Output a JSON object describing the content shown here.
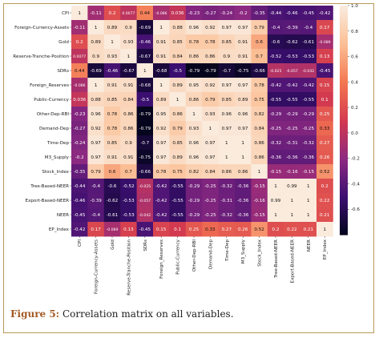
{
  "figure": {
    "label": "Figure 5:",
    "caption": "Correlation matrix on all variables."
  },
  "chart_data": {
    "type": "heatmap",
    "title": "",
    "xlabel": "",
    "ylabel": "",
    "labels": [
      "CPI",
      "Foreign-Currency-Assets",
      "Gold",
      "Reserve-Tranche-Position",
      "SDRs",
      "Foreign_Reserves",
      "Public-Currency",
      "Other-Dep-RBI",
      "Demand-Dep",
      "Time-Dep",
      "M3_Supply",
      "Stock_Index",
      "Tree-Based-NEER",
      "Export-Based-NEER",
      "NEER",
      "EP_Index"
    ],
    "values": [
      [
        "1",
        "-0.11",
        "0.2",
        "0.0077",
        "0.44",
        "-0.086",
        "0.036",
        "-0.23",
        "-0.27",
        "-0.24",
        "-0.2",
        "-0.35",
        "-0.44",
        "-0.46",
        "-0.45",
        "-0.42"
      ],
      [
        "-0.11",
        "1",
        "0.89",
        "0.9",
        "-0.69",
        "1",
        "0.88",
        "0.96",
        "0.92",
        "0.97",
        "0.97",
        "0.79",
        "-0.4",
        "-0.39",
        "-0.4",
        "0.17"
      ],
      [
        "0.2",
        "0.89",
        "1",
        "0.93",
        "-0.46",
        "0.91",
        "0.85",
        "0.78",
        "0.78",
        "0.85",
        "0.91",
        "0.6",
        "-0.6",
        "-0.62",
        "-0.61",
        "-0.089"
      ],
      [
        "0.0077",
        "0.9",
        "0.93",
        "1",
        "-0.67",
        "0.91",
        "0.84",
        "0.86",
        "0.86",
        "0.9",
        "0.91",
        "0.7",
        "-0.52",
        "-0.53",
        "-0.53",
        "0.13"
      ],
      [
        "0.44",
        "-0.69",
        "-0.46",
        "-0.67",
        "1",
        "-0.68",
        "-0.5",
        "-0.79",
        "-0.79",
        "-0.7",
        "-0.75",
        "-0.66",
        "-0.025",
        "-0.057",
        "-0.042",
        "-0.45"
      ],
      [
        "-0.086",
        "1",
        "0.91",
        "0.91",
        "-0.68",
        "1",
        "0.89",
        "0.95",
        "0.92",
        "0.97",
        "0.97",
        "0.78",
        "-0.42",
        "-0.42",
        "-0.42",
        "0.15"
      ],
      [
        "0.036",
        "0.88",
        "0.85",
        "0.84",
        "-0.5",
        "0.89",
        "1",
        "0.86",
        "0.79",
        "0.85",
        "0.89",
        "0.75",
        "-0.55",
        "-0.55",
        "-0.55",
        "0.1"
      ],
      [
        "-0.23",
        "0.96",
        "0.78",
        "0.86",
        "-0.79",
        "0.95",
        "0.86",
        "1",
        "0.93",
        "0.96",
        "0.96",
        "0.82",
        "-0.29",
        "-0.29",
        "-0.29",
        "0.25"
      ],
      [
        "-0.27",
        "0.92",
        "0.78",
        "0.86",
        "-0.79",
        "0.92",
        "0.79",
        "0.93",
        "1",
        "0.97",
        "0.97",
        "0.84",
        "-0.25",
        "-0.25",
        "-0.25",
        "0.33"
      ],
      [
        "-0.24",
        "0.97",
        "0.85",
        "0.9",
        "-0.7",
        "0.97",
        "0.85",
        "0.96",
        "0.97",
        "1",
        "1",
        "0.86",
        "-0.32",
        "-0.31",
        "-0.32",
        "0.27"
      ],
      [
        "-0.2",
        "0.97",
        "0.91",
        "0.91",
        "-0.75",
        "0.97",
        "0.89",
        "0.96",
        "0.97",
        "1",
        "1",
        "0.86",
        "-0.36",
        "-0.36",
        "-0.36",
        "0.26"
      ],
      [
        "-0.35",
        "0.79",
        "0.6",
        "0.7",
        "-0.66",
        "0.78",
        "0.75",
        "0.82",
        "0.84",
        "0.86",
        "0.86",
        "1",
        "-0.15",
        "-0.16",
        "-0.15",
        "0.52"
      ],
      [
        "-0.44",
        "-0.4",
        "-0.6",
        "-0.52",
        "-0.025",
        "-0.42",
        "-0.55",
        "-0.29",
        "-0.25",
        "-0.32",
        "-0.36",
        "-0.15",
        "1",
        "0.99",
        "1",
        "0.2"
      ],
      [
        "-0.46",
        "-0.39",
        "-0.62",
        "-0.53",
        "-0.057",
        "-0.42",
        "-0.55",
        "-0.29",
        "-0.25",
        "-0.31",
        "-0.36",
        "-0.16",
        "0.99",
        "1",
        "1",
        "0.22"
      ],
      [
        "-0.45",
        "-0.4",
        "-0.61",
        "-0.53",
        "-0.042",
        "-0.42",
        "-0.55",
        "-0.29",
        "-0.25",
        "-0.32",
        "-0.36",
        "-0.15",
        "1",
        "1",
        "1",
        "0.21"
      ],
      [
        "-0.42",
        "0.17",
        "-0.089",
        "0.13",
        "-0.45",
        "0.15",
        "0.1",
        "0.25",
        "0.33",
        "0.27",
        "0.26",
        "0.52",
        "0.2",
        "0.22",
        "0.21",
        "1"
      ]
    ],
    "colorbar": {
      "range": [
        -0.8,
        1.0
      ],
      "ticks": [
        "1.0",
        "0.8",
        "0.6",
        "0.4",
        "0.2",
        "0.0",
        "-0.2",
        "-0.4",
        "-0.6"
      ],
      "colormap": "rocket",
      "stops": [
        "#03051a",
        "#3b0f70",
        "#8c2981",
        "#d33a4f",
        "#f37651",
        "#fbbe94",
        "#faebdd"
      ]
    }
  }
}
